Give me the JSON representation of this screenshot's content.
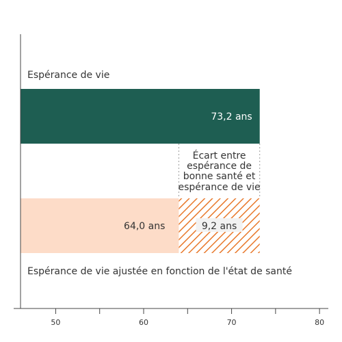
{
  "chart_data": {
    "type": "bar",
    "orientation": "horizontal",
    "xlim": [
      46,
      81
    ],
    "x_ticks": [
      50,
      60,
      70,
      80
    ],
    "tick_labels": [
      "50",
      "60",
      "70",
      "80"
    ],
    "bars": [
      {
        "label": "Espérance de vie",
        "value": 73.2,
        "value_label": "73,2 ans",
        "color": "#1e5e52"
      },
      {
        "label": "Espérance de vie ajustée en fonction de l'état de santé",
        "value": 64.0,
        "value_label": "64,0 ans",
        "color": "#fddcc8",
        "gap": {
          "value": 9.2,
          "value_label": "9,2 ans",
          "color": "#e8782a",
          "pattern": "hatched",
          "annotation": [
            "Écart entre",
            "espérance de",
            "bonne santé et",
            "espérance de vie"
          ]
        }
      }
    ],
    "grid": false,
    "legend": "none"
  }
}
